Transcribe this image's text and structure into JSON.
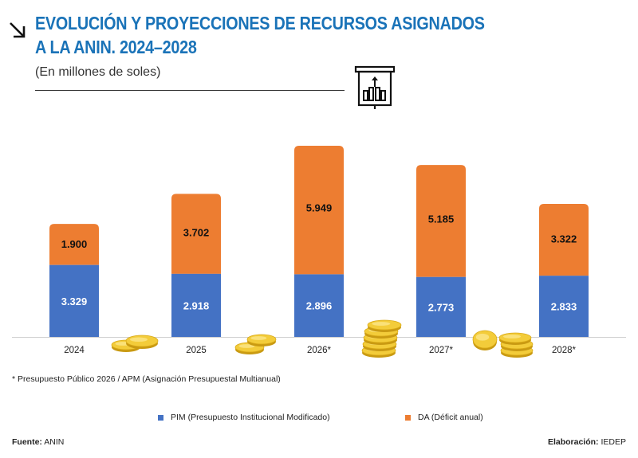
{
  "header": {
    "title_line1": "EVOLUCIÓN Y PROYECCIONES DE RECURSOS ASIGNADOS",
    "title_line2": "A LA ANIN. 2024–2028",
    "subtitle": "(En millones de soles)",
    "arrow_icon": "arrow-down-right-icon",
    "chart_icon": "presentation-board-chart-icon"
  },
  "colors": {
    "title": "#1a73b8",
    "pim": "#4472c4",
    "da": "#ed7d31"
  },
  "chart_data": {
    "type": "bar",
    "stacked": true,
    "title": "EVOLUCIÓN Y PROYECCIONES DE RECURSOS ASIGNADOS A LA ANIN. 2024–2028",
    "subtitle": "(En millones de soles)",
    "xlabel": "",
    "ylabel": "",
    "categories": [
      "2024",
      "2025",
      "2026*",
      "2027*",
      "2028*"
    ],
    "series": [
      {
        "name": "PIM (Presupuesto Institucional Modificado)",
        "values": [
          3329,
          2918,
          2896,
          2773,
          2833
        ],
        "labels": [
          "3.329",
          "2.918",
          "2.896",
          "2.773",
          "2.833"
        ]
      },
      {
        "name": "DA (Déficit anual)",
        "values": [
          1900,
          3702,
          5949,
          5185,
          3322
        ],
        "labels": [
          "1.900",
          "3.702",
          "5.949",
          "5.185",
          "3.322"
        ]
      }
    ],
    "ylim": [
      0,
      8845
    ],
    "grid": false,
    "legend_position": "bottom",
    "decorations": [
      "gold-coins-icon",
      "gold-coins-icon",
      "gold-coins-stack-icon",
      "gold-coins-icon"
    ]
  },
  "footnote": "* Presupuesto Público 2026 / APM (Asignación Presupuestal Multianual)",
  "legend": {
    "pim": "PIM (Presupuesto Institucional Modificado)",
    "da": "DA (Déficit anual)"
  },
  "footer": {
    "source_label": "Fuente:",
    "source_value": "ANIN",
    "credit_label": "Elaboración:",
    "credit_value": "IEDEP"
  }
}
